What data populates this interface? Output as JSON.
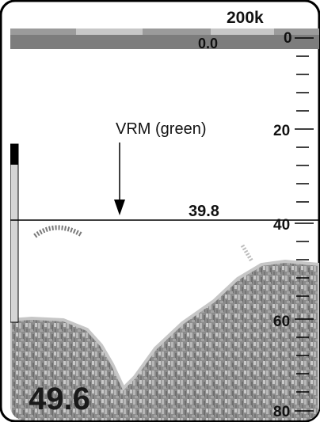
{
  "display": {
    "frequency": "200k",
    "shift_value": "0.0",
    "vrm_reading": "39.8",
    "current_depth": "49.6",
    "vrm_annotation": "VRM (green)"
  },
  "depth_scale": {
    "labels": [
      "0",
      "20",
      "40",
      "60",
      "80"
    ]
  },
  "colors": {
    "frame": "#000000",
    "bottom_dark": "#7a7a7a",
    "bottom_light": "#bcbcbc",
    "bottom_edge": "#c8c8c8",
    "scale_bar_dark": "#8a8a8a",
    "scale_bar_light": "#c7c7c7"
  }
}
